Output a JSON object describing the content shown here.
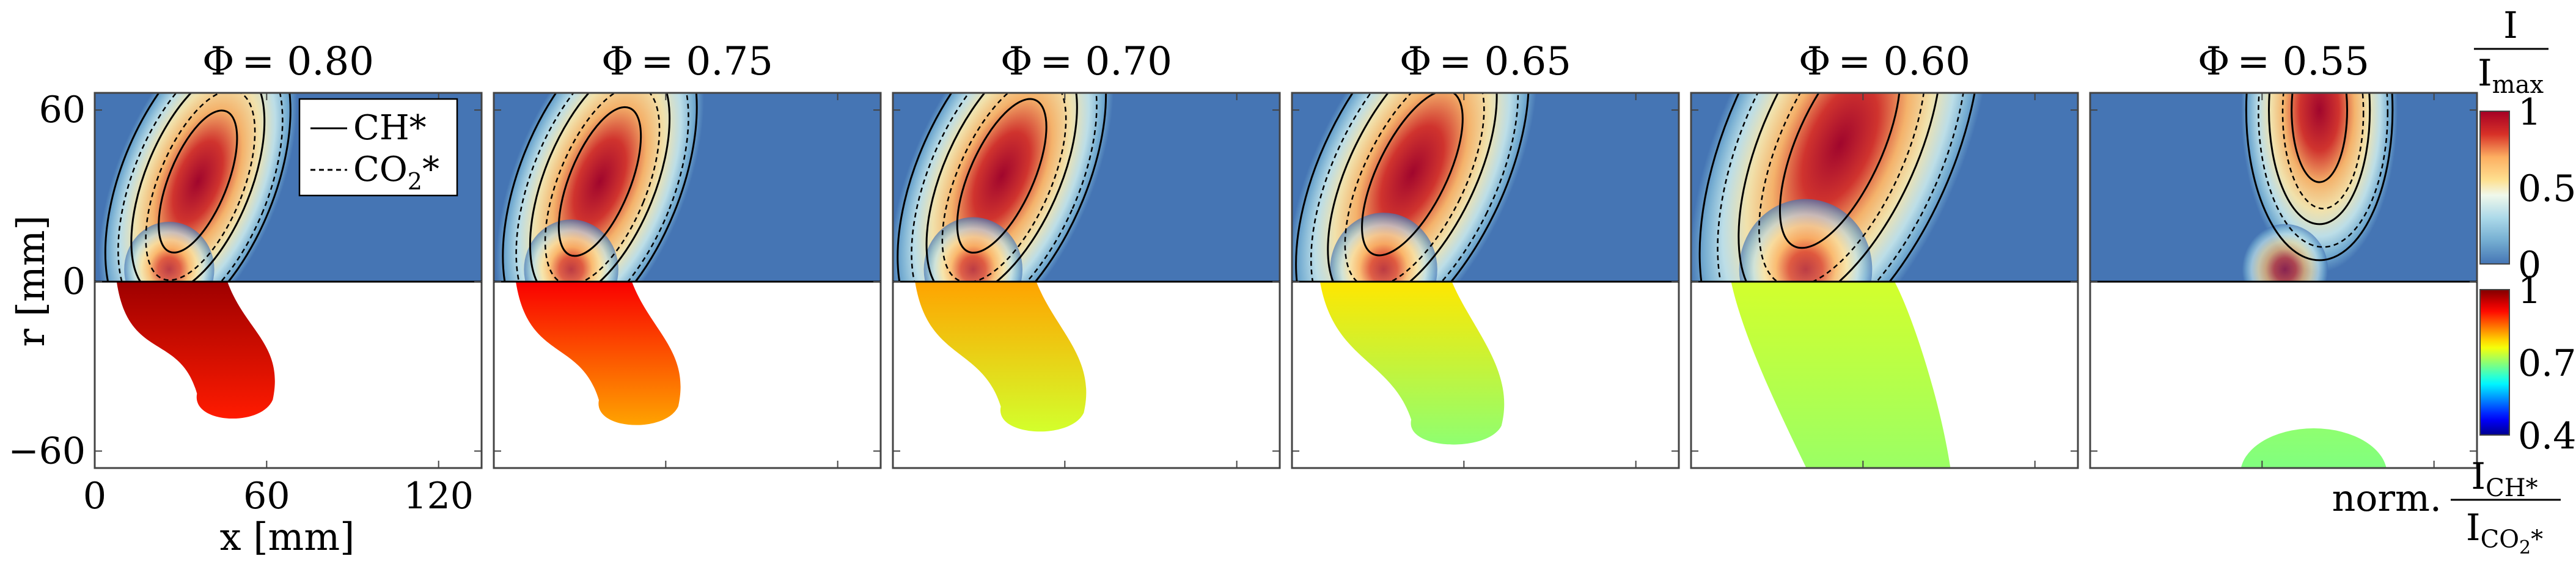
{
  "chart_data": {
    "type": "heatmap",
    "description_free": true,
    "xlabel": "x [mm]",
    "ylabel": "r [mm]",
    "x_ticks": [
      0,
      60,
      120
    ],
    "y_ticks": [
      60,
      0,
      -60
    ],
    "xlim": [
      0,
      135
    ],
    "ylim": [
      -66,
      66
    ],
    "legend": {
      "placement": "top-right of first panel",
      "entries": [
        {
          "label": "CH*",
          "style": "solid"
        },
        {
          "label": "CO",
          "sub": "2",
          "tail": "*",
          "style": "dashed"
        }
      ]
    },
    "colorbar_intensity": {
      "label_num": "I",
      "label_den": "I",
      "label_den_sub": "max",
      "ticks": [
        "1",
        "0.5",
        "0"
      ],
      "range": [
        0,
        1
      ],
      "colormap": "RdYlBu_r"
    },
    "colorbar_ratio": {
      "label_prefix": "norm.",
      "label_num": "I",
      "label_num_sub": "CH*",
      "label_den": "I",
      "label_den_sub": "CO",
      "label_den_sub2": "2",
      "label_den_tail": "*",
      "ticks": [
        "1",
        "0.7",
        "0.4"
      ],
      "range": [
        0.4,
        1.0
      ],
      "colormap": "jet"
    },
    "panels": [
      {
        "phi_symbol": "Φ",
        "phi": "= 0.80",
        "blob_center": [
          36,
          35
        ],
        "blob_len": 42,
        "tilt_deg": 22,
        "ratio_fill": 0.98,
        "ratio_tip": 0.9
      },
      {
        "phi_symbol": "Φ",
        "phi": "= 0.75",
        "blob_center": [
          37,
          35
        ],
        "blob_len": 44,
        "tilt_deg": 22,
        "ratio_fill": 0.92,
        "ratio_tip": 0.82
      },
      {
        "phi_symbol": "Φ",
        "phi": "= 0.70",
        "blob_center": [
          38,
          37
        ],
        "blob_len": 46,
        "tilt_deg": 24,
        "ratio_fill": 0.82,
        "ratio_tip": 0.74
      },
      {
        "phi_symbol": "Φ",
        "phi": "= 0.65",
        "blob_center": [
          42,
          38
        ],
        "blob_len": 50,
        "tilt_deg": 26,
        "ratio_fill": 0.78,
        "ratio_tip": 0.7
      },
      {
        "phi_symbol": "Φ",
        "phi": "= 0.60",
        "blob_center": [
          52,
          48
        ],
        "blob_len": 62,
        "tilt_deg": 24,
        "ratio_fill": 0.74,
        "ratio_tip": 0.69
      },
      {
        "phi_symbol": "Φ",
        "phi": "= 0.55",
        "blob_center": [
          80,
          60
        ],
        "blob_len": 40,
        "tilt_deg": 0,
        "ratio_fill": 0.7,
        "ratio_tip": 0.68
      }
    ]
  }
}
